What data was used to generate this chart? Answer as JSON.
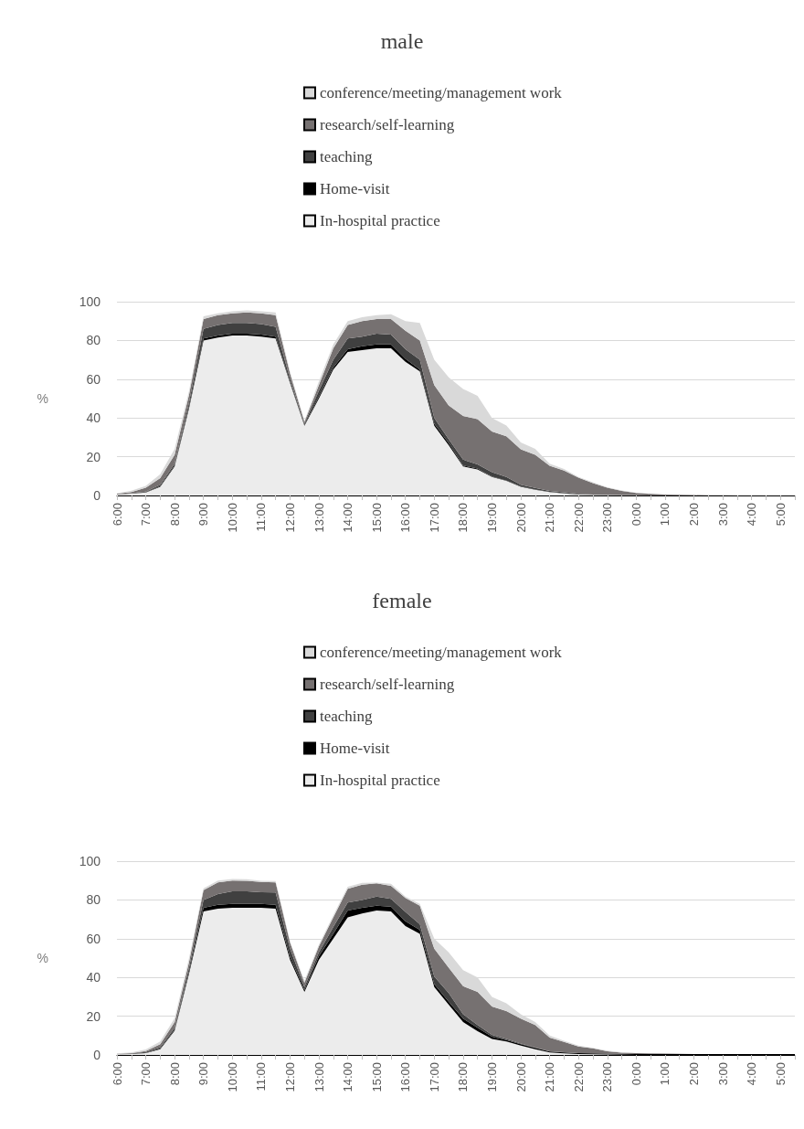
{
  "chart_data": [
    {
      "type": "area",
      "title": "male",
      "ylabel": "%",
      "stacked": true,
      "legend": "top",
      "grid": "y",
      "marker": "none",
      "ylim": [
        0,
        100
      ],
      "yticks": [
        0,
        20,
        40,
        60,
        80,
        100
      ],
      "categories": [
        "6:00",
        null,
        "7:00",
        null,
        "8:00",
        null,
        "9:00",
        null,
        "10:00",
        null,
        "11:00",
        null,
        "12:00",
        null,
        "13:00",
        null,
        "14:00",
        null,
        "15:00",
        null,
        "16:00",
        null,
        "17:00",
        null,
        "18:00",
        null,
        "19:00",
        null,
        "20:00",
        null,
        "21:00",
        null,
        "22:00",
        null,
        "23:00",
        null,
        "0:00",
        null,
        "1:00",
        null,
        "2:00",
        null,
        "3:00",
        null,
        "4:00",
        null,
        "5:00",
        null
      ],
      "series": [
        {
          "name": "In-hospital practice",
          "color": "#ececec",
          "values": [
            0.5,
            1,
            1.5,
            4.5,
            15,
            45,
            80,
            81.5,
            82.5,
            82.5,
            82,
            81,
            58,
            36,
            50,
            65,
            74,
            75,
            76,
            76,
            69,
            64,
            36,
            26,
            15,
            13.5,
            9.5,
            7.5,
            4.5,
            3,
            1.8,
            1.1,
            0.5,
            0.3,
            0.2,
            0.1,
            0.1,
            0,
            0,
            0,
            0,
            0,
            0,
            0,
            0,
            0,
            0,
            0
          ]
        },
        {
          "name": "Home-visit",
          "color": "#000000",
          "values": [
            0,
            0,
            0.1,
            0.3,
            0.5,
            1,
            1,
            1,
            1,
            1,
            1,
            1,
            0.5,
            0.3,
            1,
            1,
            1.5,
            2,
            2,
            2,
            1.5,
            1,
            1,
            1,
            0.5,
            0.4,
            0.3,
            0.2,
            0.2,
            0.1,
            0.1,
            0.1,
            0.1,
            0,
            0,
            0,
            0,
            0,
            0,
            0,
            0,
            0,
            0,
            0,
            0,
            0,
            0,
            0
          ]
        },
        {
          "name": "teaching",
          "color": "#404040",
          "values": [
            0.1,
            0.2,
            0.4,
            0.7,
            1,
            2,
            5,
            5.5,
            5.5,
            5.5,
            5.5,
            5,
            1.5,
            0.7,
            3,
            4,
            5.5,
            5,
            5.5,
            5,
            5,
            5,
            3,
            2,
            3,
            2.1,
            2.2,
            1.9,
            0.9,
            0.8,
            0.5,
            0.4,
            0.2,
            0.2,
            0.1,
            0.1,
            0,
            0,
            0,
            0,
            0,
            0,
            0,
            0,
            0,
            0,
            0,
            0
          ]
        },
        {
          "name": "research/self-learning",
          "color": "#767171",
          "values": [
            0.4,
            0.6,
            2,
            3.5,
            4.5,
            4,
            5,
            5,
            5,
            5.5,
            5.5,
            6,
            3,
            1,
            3,
            6,
            7,
            8,
            7.5,
            8,
            9.5,
            10,
            17,
            17.5,
            22.5,
            23.4,
            21,
            21,
            18.2,
            17.1,
            12.9,
            11.3,
            8.4,
            5.9,
            3.7,
            2.2,
            1.2,
            0.8,
            0.5,
            0.3,
            0.2,
            0.1,
            0.1,
            0,
            0,
            0,
            0,
            0
          ]
        },
        {
          "name": "conference/meeting/management work",
          "color": "#d9d9d9",
          "values": [
            0.2,
            0.7,
            1,
            2,
            3,
            2,
            1.5,
            1,
            1,
            1,
            1,
            1.5,
            1,
            0.5,
            2,
            2,
            2,
            2,
            2,
            2.5,
            5,
            9,
            13,
            14.5,
            14,
            12,
            7,
            5.5,
            3.5,
            3,
            1.1,
            0.8,
            0.4,
            0.4,
            0.3,
            0.2,
            0.1,
            0,
            0,
            0,
            0,
            0,
            0,
            0,
            0,
            0,
            0,
            0
          ]
        }
      ]
    },
    {
      "type": "area",
      "title": "female",
      "ylabel": "%",
      "stacked": true,
      "legend": "top",
      "grid": "y",
      "marker": "none",
      "ylim": [
        0,
        100
      ],
      "yticks": [
        0,
        20,
        40,
        60,
        80,
        100
      ],
      "categories": [
        "6:00",
        null,
        "7:00",
        null,
        "8:00",
        null,
        "9:00",
        null,
        "10:00",
        null,
        "11:00",
        null,
        "12:00",
        null,
        "13:00",
        null,
        "14:00",
        null,
        "15:00",
        null,
        "16:00",
        null,
        "17:00",
        null,
        "18:00",
        null,
        "19:00",
        null,
        "20:00",
        null,
        "21:00",
        null,
        "22:00",
        null,
        "23:00",
        null,
        "0:00",
        null,
        "1:00",
        null,
        "2:00",
        null,
        "3:00",
        null,
        "4:00",
        null,
        "5:00",
        null
      ],
      "series": [
        {
          "name": "In-hospital practice",
          "color": "#ececec",
          "values": [
            0.3,
            0.5,
            1,
            3,
            12.5,
            42,
            74,
            75.5,
            76,
            76,
            76,
            75.5,
            49,
            32.5,
            49,
            60,
            71,
            73,
            74.5,
            74,
            66.5,
            62.5,
            35,
            26,
            17,
            12.3,
            8.3,
            7,
            4.8,
            3,
            1.3,
            0.8,
            0.5,
            0.3,
            0.2,
            0.1,
            0,
            0,
            0,
            0,
            0,
            0,
            0,
            0,
            0,
            0,
            0,
            0
          ]
        },
        {
          "name": "Home-visit",
          "color": "#000000",
          "values": [
            0,
            0,
            0.1,
            0.3,
            0.5,
            1,
            2,
            2,
            2,
            2,
            2,
            2,
            1.5,
            1,
            2,
            2.5,
            3.5,
            3,
            2.5,
            2.5,
            2.5,
            2,
            1.5,
            1.5,
            1.7,
            1.7,
            1.1,
            0.7,
            0.7,
            0.6,
            0.5,
            0.5,
            0.5,
            0.5,
            0.5,
            0.5,
            0.5,
            0.5,
            0.5,
            0.5,
            0.5,
            0.5,
            0.5,
            0.5,
            0.5,
            0.5,
            0.5,
            0.5
          ]
        },
        {
          "name": "teaching",
          "color": "#404040",
          "values": [
            0.1,
            0.2,
            0.4,
            0.7,
            1,
            2,
            4,
            5.5,
            6.4,
            6.4,
            6,
            6.3,
            4.3,
            1.5,
            2,
            3.5,
            4.1,
            4,
            4.7,
            4,
            4.8,
            3,
            4,
            4.5,
            2.3,
            1.5,
            1,
            0.6,
            0.4,
            0.2,
            0.1,
            0.1,
            0,
            0,
            0,
            0,
            0,
            0,
            0,
            0,
            0,
            0,
            0,
            0,
            0,
            0,
            0,
            0
          ]
        },
        {
          "name": "research/self-learning",
          "color": "#767171",
          "values": [
            0.2,
            0.3,
            0.5,
            1.5,
            3,
            3,
            5,
            6,
            5.6,
            5.5,
            5.3,
            5.2,
            3.2,
            2.3,
            3,
            5,
            7.1,
            7.8,
            6.9,
            6.8,
            7.2,
            9.5,
            14.3,
            13,
            14.5,
            17.1,
            14.6,
            14.4,
            12.8,
            11.7,
            7.1,
            5.3,
            3.4,
            2.6,
            1.2,
            0.6,
            0.4,
            0.3,
            0.2,
            0.1,
            0,
            0,
            0,
            0,
            0,
            0,
            0,
            0
          ]
        },
        {
          "name": "conference/meeting/management work",
          "color": "#d9d9d9",
          "values": [
            0.2,
            0.3,
            0.8,
            1.5,
            2,
            2,
            1,
            1,
            0.8,
            0.8,
            0.5,
            0.7,
            0.5,
            1,
            1,
            1,
            1.1,
            1,
            0.3,
            1,
            0.7,
            1,
            5.2,
            8,
            8.3,
            7.4,
            5,
            4,
            2.3,
            1.5,
            1,
            0.6,
            0.4,
            0.3,
            0.3,
            0.2,
            0.1,
            0.1,
            0,
            0,
            0,
            0,
            0,
            0,
            0,
            0,
            0,
            0
          ]
        }
      ]
    }
  ]
}
